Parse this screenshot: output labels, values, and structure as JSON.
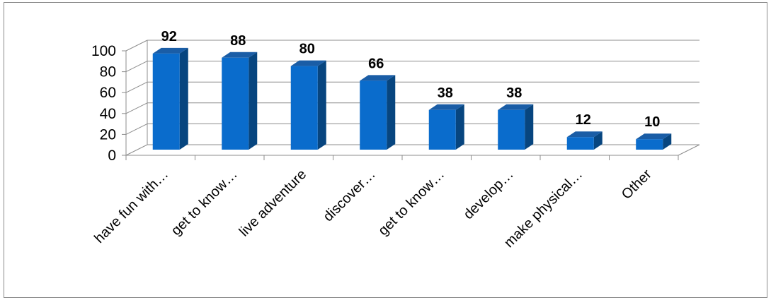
{
  "chart_data": {
    "type": "bar",
    "style": "3d-column",
    "title": "",
    "xlabel": "",
    "ylabel": "",
    "categories": [
      "have fun with…",
      "get to know…",
      "live adventure",
      "discover…",
      "get to know…",
      "develop…",
      "make physical…",
      "Other"
    ],
    "values": [
      92,
      88,
      80,
      66,
      38,
      38,
      12,
      10
    ],
    "ylim": [
      0,
      100
    ],
    "yticks": [
      "0",
      "20",
      "40",
      "60",
      "80",
      "100"
    ],
    "grid": true,
    "legend": "none",
    "colors": {
      "bar_front": "#0a6ccc",
      "bar_side": "#07457f",
      "bar_top": "#1a5da6",
      "grid": "#8c8c8c",
      "axis": "#8c8c8c"
    }
  }
}
